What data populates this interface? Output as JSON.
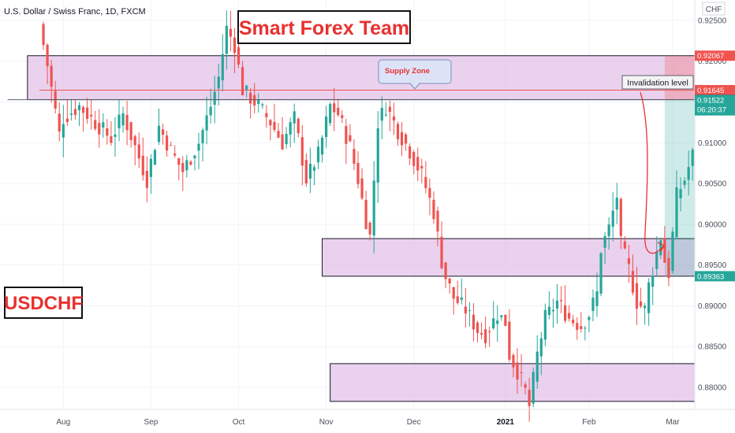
{
  "header": {
    "symbol_title": "U.S. Dollar / Swiss Franc, 1D, FXCM"
  },
  "currency_label": "CHF",
  "brand_title": "Smart Forex Team",
  "pair_label": "USDCHF",
  "annotations": {
    "supply_zone": "Supply Zone",
    "invalidation": "Invalidation level"
  },
  "price_tags": [
    {
      "price": 0.92067,
      "label": "0.92067",
      "color": "#ef5350"
    },
    {
      "price": 0.91645,
      "label": "0.91645",
      "color": "#ef5350"
    },
    {
      "price": 0.91528,
      "label": "0.91528",
      "color": "#5d606b"
    },
    {
      "price": 0.91522,
      "label": "0.91522",
      "sublabel": "06:20:37",
      "color": "#26a69a"
    },
    {
      "price": 0.89363,
      "label": "0.89363",
      "color": "#26a69a"
    }
  ],
  "colors": {
    "up": "#26a69a",
    "down": "#ef5350",
    "zone": "#e1bee7",
    "accent": "#e8312f"
  },
  "chart_data": {
    "type": "candlestick",
    "title": "U.S. Dollar / Swiss Franc, 1D, FXCM",
    "ylim": [
      0.8773,
      0.9275
    ],
    "y_ticks": [
      0.925,
      0.92,
      0.915,
      0.91,
      0.905,
      0.9,
      0.895,
      0.89,
      0.885,
      0.88
    ],
    "y_tick_labels": [
      "0.92500",
      "0.92000",
      "0.91500",
      "0.91000",
      "0.90500",
      "0.90000",
      "0.89500",
      "0.89000",
      "0.88500",
      "0.88000"
    ],
    "x_ticks": [
      {
        "label": "Aug",
        "index": 6
      },
      {
        "label": "Sep",
        "index": 28
      },
      {
        "label": "Oct",
        "index": 50
      },
      {
        "label": "Nov",
        "index": 72
      },
      {
        "label": "Dec",
        "index": 94
      },
      {
        "label": "2021",
        "index": 117,
        "bold": true
      },
      {
        "label": "Feb",
        "index": 138
      },
      {
        "label": "Mar",
        "index": 159
      }
    ],
    "key_points": [
      [
        0,
        0.9245
      ],
      [
        2,
        0.9195
      ],
      [
        5,
        0.911
      ],
      [
        6,
        0.913
      ],
      [
        10,
        0.9145
      ],
      [
        14,
        0.9125
      ],
      [
        18,
        0.9105
      ],
      [
        21,
        0.9135
      ],
      [
        24,
        0.9095
      ],
      [
        27,
        0.9055
      ],
      [
        30,
        0.912
      ],
      [
        33,
        0.909
      ],
      [
        36,
        0.9065
      ],
      [
        40,
        0.91
      ],
      [
        43,
        0.9145
      ],
      [
        45,
        0.918
      ],
      [
        47,
        0.924
      ],
      [
        49,
        0.922
      ],
      [
        51,
        0.9165
      ],
      [
        55,
        0.9145
      ],
      [
        58,
        0.9125
      ],
      [
        61,
        0.91
      ],
      [
        64,
        0.913
      ],
      [
        67,
        0.9055
      ],
      [
        70,
        0.9085
      ],
      [
        73,
        0.9145
      ],
      [
        75,
        0.9135
      ],
      [
        78,
        0.9095
      ],
      [
        80,
        0.9055
      ],
      [
        82,
        0.9005
      ],
      [
        83,
        0.8985
      ],
      [
        85,
        0.9125
      ],
      [
        87,
        0.9145
      ],
      [
        90,
        0.9115
      ],
      [
        93,
        0.909
      ],
      [
        96,
        0.906
      ],
      [
        99,
        0.9015
      ],
      [
        101,
        0.8955
      ],
      [
        102,
        0.8935
      ],
      [
        104,
        0.891
      ],
      [
        107,
        0.8895
      ],
      [
        110,
        0.887
      ],
      [
        112,
        0.8865
      ],
      [
        115,
        0.889
      ],
      [
        117,
        0.888
      ],
      [
        118,
        0.884
      ],
      [
        120,
        0.882
      ],
      [
        122,
        0.8795
      ],
      [
        123,
        0.8777
      ],
      [
        125,
        0.884
      ],
      [
        127,
        0.8885
      ],
      [
        130,
        0.8905
      ],
      [
        133,
        0.8885
      ],
      [
        136,
        0.8875
      ],
      [
        138,
        0.889
      ],
      [
        140,
        0.8915
      ],
      [
        141,
        0.897
      ],
      [
        143,
        0.8995
      ],
      [
        145,
        0.9035
      ],
      [
        146,
        0.8975
      ],
      [
        148,
        0.8945
      ],
      [
        150,
        0.8905
      ],
      [
        152,
        0.8895
      ],
      [
        153,
        0.8925
      ],
      [
        155,
        0.8965
      ],
      [
        156,
        0.8985
      ],
      [
        157,
        0.8955
      ],
      [
        158,
        0.894
      ],
      [
        160,
        0.9035
      ],
      [
        162,
        0.9055
      ],
      [
        164,
        0.9085
      ],
      [
        166,
        0.9105
      ],
      [
        168,
        0.9152
      ]
    ],
    "last_price": 0.91522,
    "zones": [
      {
        "top": 0.92067,
        "bottom": 0.91528,
        "from_index": -3,
        "to_index": 178
      },
      {
        "top": 0.89824,
        "bottom": 0.89363,
        "from_index": 71,
        "to_index": 178
      },
      {
        "top": 0.88291,
        "bottom": 0.87828,
        "from_index": 73,
        "to_index": 178
      }
    ],
    "lines": [
      {
        "price": 0.91645,
        "from_index": 0,
        "to_index": 178,
        "color": "#ef5350"
      },
      {
        "price": 0.91528,
        "from_index": -8,
        "to_index": 178,
        "color": "#5d606b"
      }
    ],
    "position": {
      "entry": 0.91528,
      "stop": 0.92067,
      "target": 0.89363,
      "from_index": 157,
      "to_index": 178
    }
  }
}
